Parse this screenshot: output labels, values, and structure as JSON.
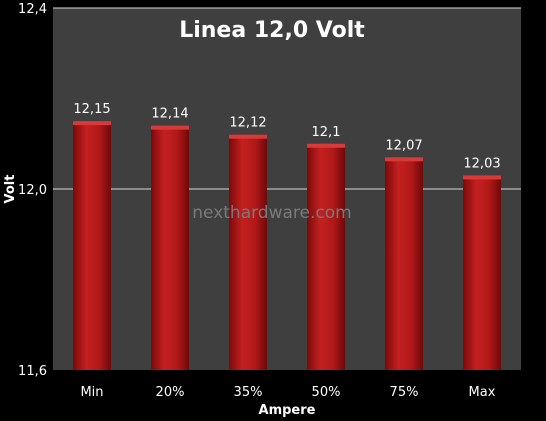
{
  "chart_data": {
    "type": "bar",
    "title": "Linea 12,0 Volt",
    "xlabel": "Ampere",
    "ylabel": "Volt",
    "categories": [
      "Min",
      "20%",
      "35%",
      "50%",
      "75%",
      "Max"
    ],
    "values": [
      12.15,
      12.14,
      12.12,
      12.1,
      12.07,
      12.03
    ],
    "value_labels": [
      "12,15",
      "12,14",
      "12,12",
      "12,1",
      "12,07",
      "12,03"
    ],
    "ylim": [
      11.6,
      12.4
    ],
    "yticks": [
      11.6,
      12.0,
      12.4
    ],
    "ytick_labels": [
      "11,6",
      "12,0",
      "12,4"
    ],
    "grid": true,
    "legend": "none"
  },
  "watermark": "nexthardware.com",
  "colors": {
    "background": "#000000",
    "plot_area": "#3f3f3f",
    "bar": "#b01818",
    "gridline": "#d8d8d8"
  }
}
